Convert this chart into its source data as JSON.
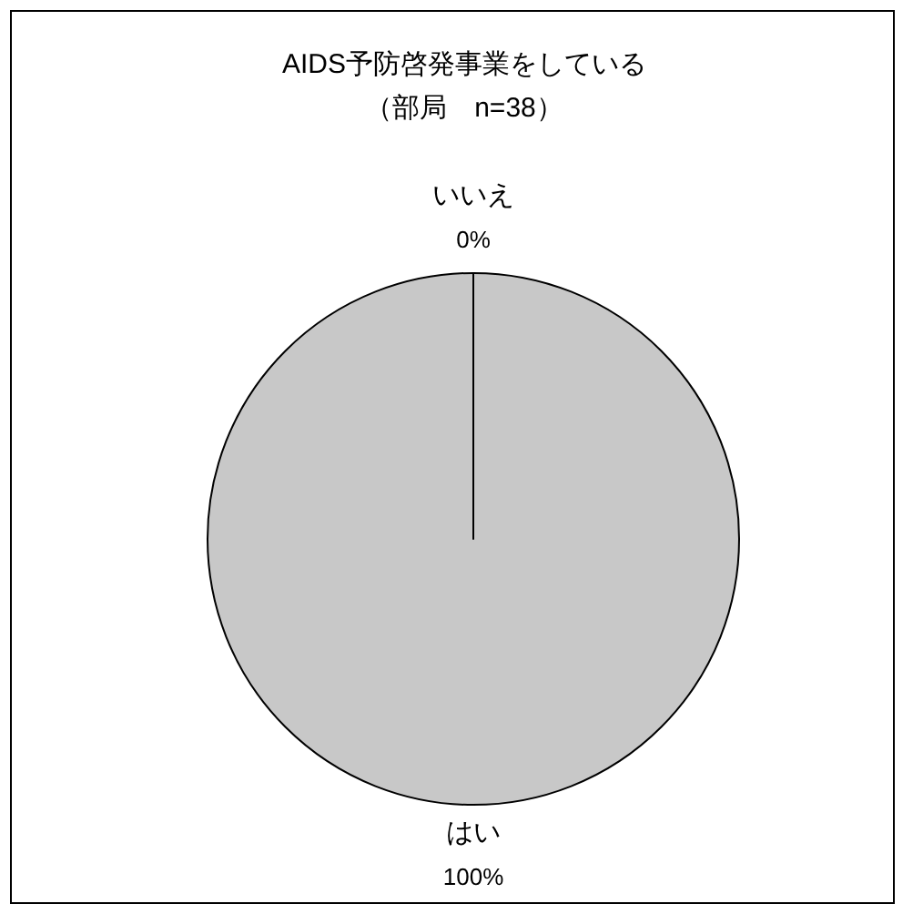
{
  "chart_data": {
    "type": "pie",
    "title": "AIDS予防啓発事業をしている",
    "subtitle": "（部局　n=38）",
    "categories": [
      "はい",
      "いいえ"
    ],
    "values": [
      100,
      0
    ],
    "colors": [
      "#c8c8c8",
      "#c8c8c8"
    ],
    "value_labels": [
      "100%",
      "0%"
    ]
  }
}
